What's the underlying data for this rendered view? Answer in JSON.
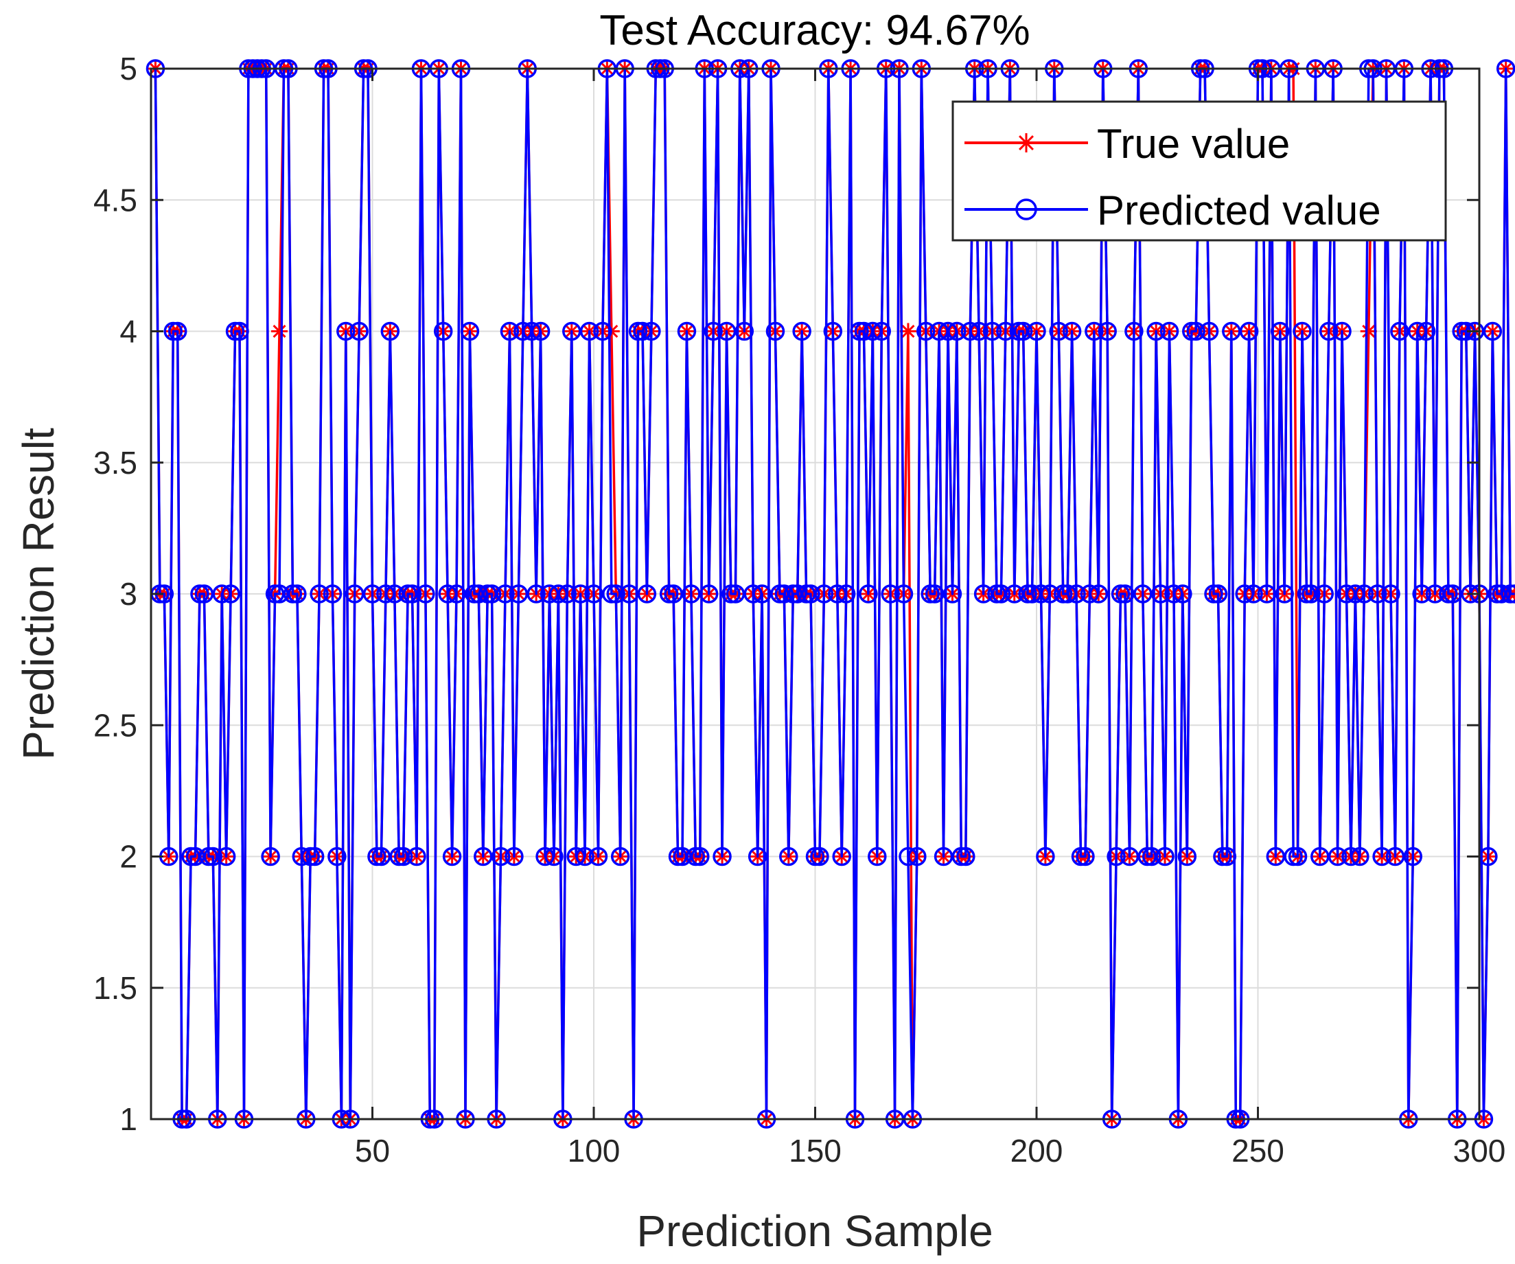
{
  "chart_data": {
    "type": "line",
    "title": "Test Accuracy: 94.67%",
    "xlabel": "Prediction Sample",
    "ylabel": "Prediction Result",
    "xlim": [
      0,
      300
    ],
    "ylim": [
      1,
      5
    ],
    "xticks": [
      50,
      100,
      150,
      200,
      250,
      300
    ],
    "yticks": [
      1,
      1.5,
      2,
      2.5,
      3,
      3.5,
      4,
      4.5,
      5
    ],
    "xtick_labels": [
      "50",
      "100",
      "150",
      "200",
      "250",
      "300"
    ],
    "ytick_labels": [
      "1",
      "1.5",
      "2",
      "2.5",
      "3",
      "3.5",
      "4",
      "4.5",
      "5"
    ],
    "grid": true,
    "legend_position": "top-right",
    "series": [
      {
        "name": "True value",
        "color": "#ff0000",
        "marker": "asterisk",
        "values": [
          5,
          3,
          3,
          2,
          4,
          4,
          1,
          1,
          2,
          2,
          3,
          3,
          2,
          2,
          1,
          3,
          2,
          3,
          4,
          4,
          1,
          5,
          5,
          5,
          5,
          5,
          2,
          3,
          4,
          5,
          5,
          3,
          3,
          2,
          1,
          2,
          2,
          3,
          5,
          5,
          3,
          2,
          1,
          4,
          1,
          3,
          4,
          5,
          5,
          3,
          2,
          2,
          3,
          4,
          3,
          2,
          2,
          3,
          3,
          2,
          5,
          3,
          1,
          1,
          5,
          4,
          3,
          2,
          3,
          5,
          1,
          4,
          3,
          3,
          2,
          3,
          3,
          1,
          2,
          3,
          4,
          2,
          3,
          4,
          5,
          4,
          3,
          4,
          2,
          3,
          2,
          3,
          1,
          3,
          4,
          2,
          3,
          2,
          4,
          3,
          2,
          4,
          5,
          4,
          3,
          2,
          5,
          3,
          1,
          4,
          4,
          3,
          4,
          5,
          5,
          5,
          3,
          3,
          2,
          2,
          4,
          3,
          2,
          2,
          5,
          3,
          4,
          5,
          2,
          4,
          3,
          3,
          5,
          4,
          5,
          3,
          2,
          3,
          1,
          5,
          4,
          3,
          3,
          2,
          3,
          3,
          4,
          3,
          3,
          2,
          2,
          3,
          5,
          4,
          3,
          2,
          3,
          5,
          1,
          4,
          4,
          3,
          4,
          2,
          4,
          5,
          3,
          1,
          5,
          3,
          4,
          1,
          2,
          5,
          4,
          3,
          3,
          4,
          2,
          4,
          3,
          4,
          2,
          2,
          4,
          5,
          4,
          3,
          5,
          4,
          3,
          3,
          4,
          5,
          3,
          4,
          4,
          3,
          3,
          4,
          3,
          2,
          3,
          5,
          4,
          3,
          3,
          4,
          3,
          2,
          2,
          3,
          4,
          3,
          5,
          4,
          1,
          2,
          3,
          3,
          2,
          4,
          5,
          3,
          2,
          2,
          4,
          3,
          2,
          4,
          3,
          1,
          3,
          2,
          4,
          4,
          5,
          5,
          4,
          3,
          3,
          2,
          2,
          4,
          1,
          1,
          3,
          4,
          3,
          5,
          5,
          3,
          5,
          2,
          4,
          3,
          5,
          5,
          2,
          4,
          3,
          3,
          5,
          2,
          3,
          4,
          5,
          2,
          4,
          3,
          2,
          3,
          2,
          3,
          4,
          5,
          3,
          2,
          5,
          3,
          2,
          4,
          5,
          1,
          2,
          4,
          3,
          4,
          5,
          3,
          5,
          5,
          3,
          3,
          1,
          4,
          4,
          3,
          4,
          3,
          1,
          2,
          4,
          3,
          3,
          5,
          3,
          3
        ]
      },
      {
        "name": "Predicted value",
        "color": "#0000ff",
        "marker": "circle",
        "values": [
          5,
          3,
          3,
          2,
          4,
          4,
          1,
          1,
          2,
          2,
          3,
          3,
          2,
          2,
          1,
          3,
          2,
          3,
          4,
          4,
          1,
          5,
          5,
          5,
          5,
          5,
          2,
          3,
          3,
          5,
          5,
          3,
          3,
          2,
          1,
          2,
          2,
          3,
          5,
          5,
          3,
          2,
          1,
          4,
          1,
          3,
          4,
          5,
          5,
          3,
          2,
          2,
          3,
          4,
          3,
          2,
          2,
          3,
          3,
          2,
          5,
          3,
          1,
          1,
          5,
          4,
          3,
          2,
          3,
          5,
          1,
          4,
          3,
          3,
          2,
          3,
          3,
          1,
          2,
          3,
          4,
          2,
          3,
          4,
          5,
          4,
          3,
          4,
          2,
          3,
          2,
          3,
          1,
          3,
          4,
          2,
          3,
          2,
          4,
          3,
          2,
          4,
          5,
          3,
          3,
          2,
          5,
          3,
          1,
          4,
          4,
          3,
          4,
          5,
          5,
          5,
          3,
          3,
          2,
          2,
          4,
          3,
          2,
          2,
          5,
          3,
          4,
          5,
          2,
          4,
          3,
          3,
          5,
          4,
          5,
          3,
          2,
          3,
          1,
          5,
          4,
          3,
          3,
          2,
          3,
          3,
          4,
          3,
          3,
          2,
          2,
          3,
          5,
          4,
          3,
          2,
          3,
          5,
          1,
          4,
          4,
          3,
          4,
          2,
          4,
          5,
          3,
          1,
          5,
          3,
          2,
          1,
          2,
          5,
          4,
          3,
          3,
          4,
          2,
          4,
          3,
          4,
          2,
          2,
          4,
          5,
          4,
          3,
          5,
          4,
          3,
          3,
          4,
          5,
          3,
          4,
          4,
          3,
          3,
          4,
          3,
          2,
          3,
          5,
          4,
          3,
          3,
          4,
          3,
          2,
          2,
          3,
          4,
          3,
          5,
          4,
          1,
          2,
          3,
          3,
          2,
          4,
          5,
          3,
          2,
          2,
          4,
          3,
          2,
          4,
          3,
          1,
          3,
          2,
          4,
          4,
          5,
          5,
          4,
          3,
          3,
          2,
          2,
          4,
          1,
          1,
          3,
          4,
          3,
          5,
          5,
          3,
          5,
          2,
          4,
          3,
          5,
          2,
          2,
          4,
          3,
          3,
          5,
          2,
          3,
          4,
          5,
          2,
          4,
          3,
          2,
          3,
          2,
          3,
          5,
          5,
          3,
          2,
          5,
          3,
          2,
          4,
          5,
          1,
          2,
          4,
          3,
          4,
          5,
          3,
          5,
          5,
          3,
          3,
          1,
          4,
          4,
          3,
          4,
          3,
          1,
          2,
          4,
          3,
          3,
          5,
          3,
          3
        ]
      }
    ]
  }
}
